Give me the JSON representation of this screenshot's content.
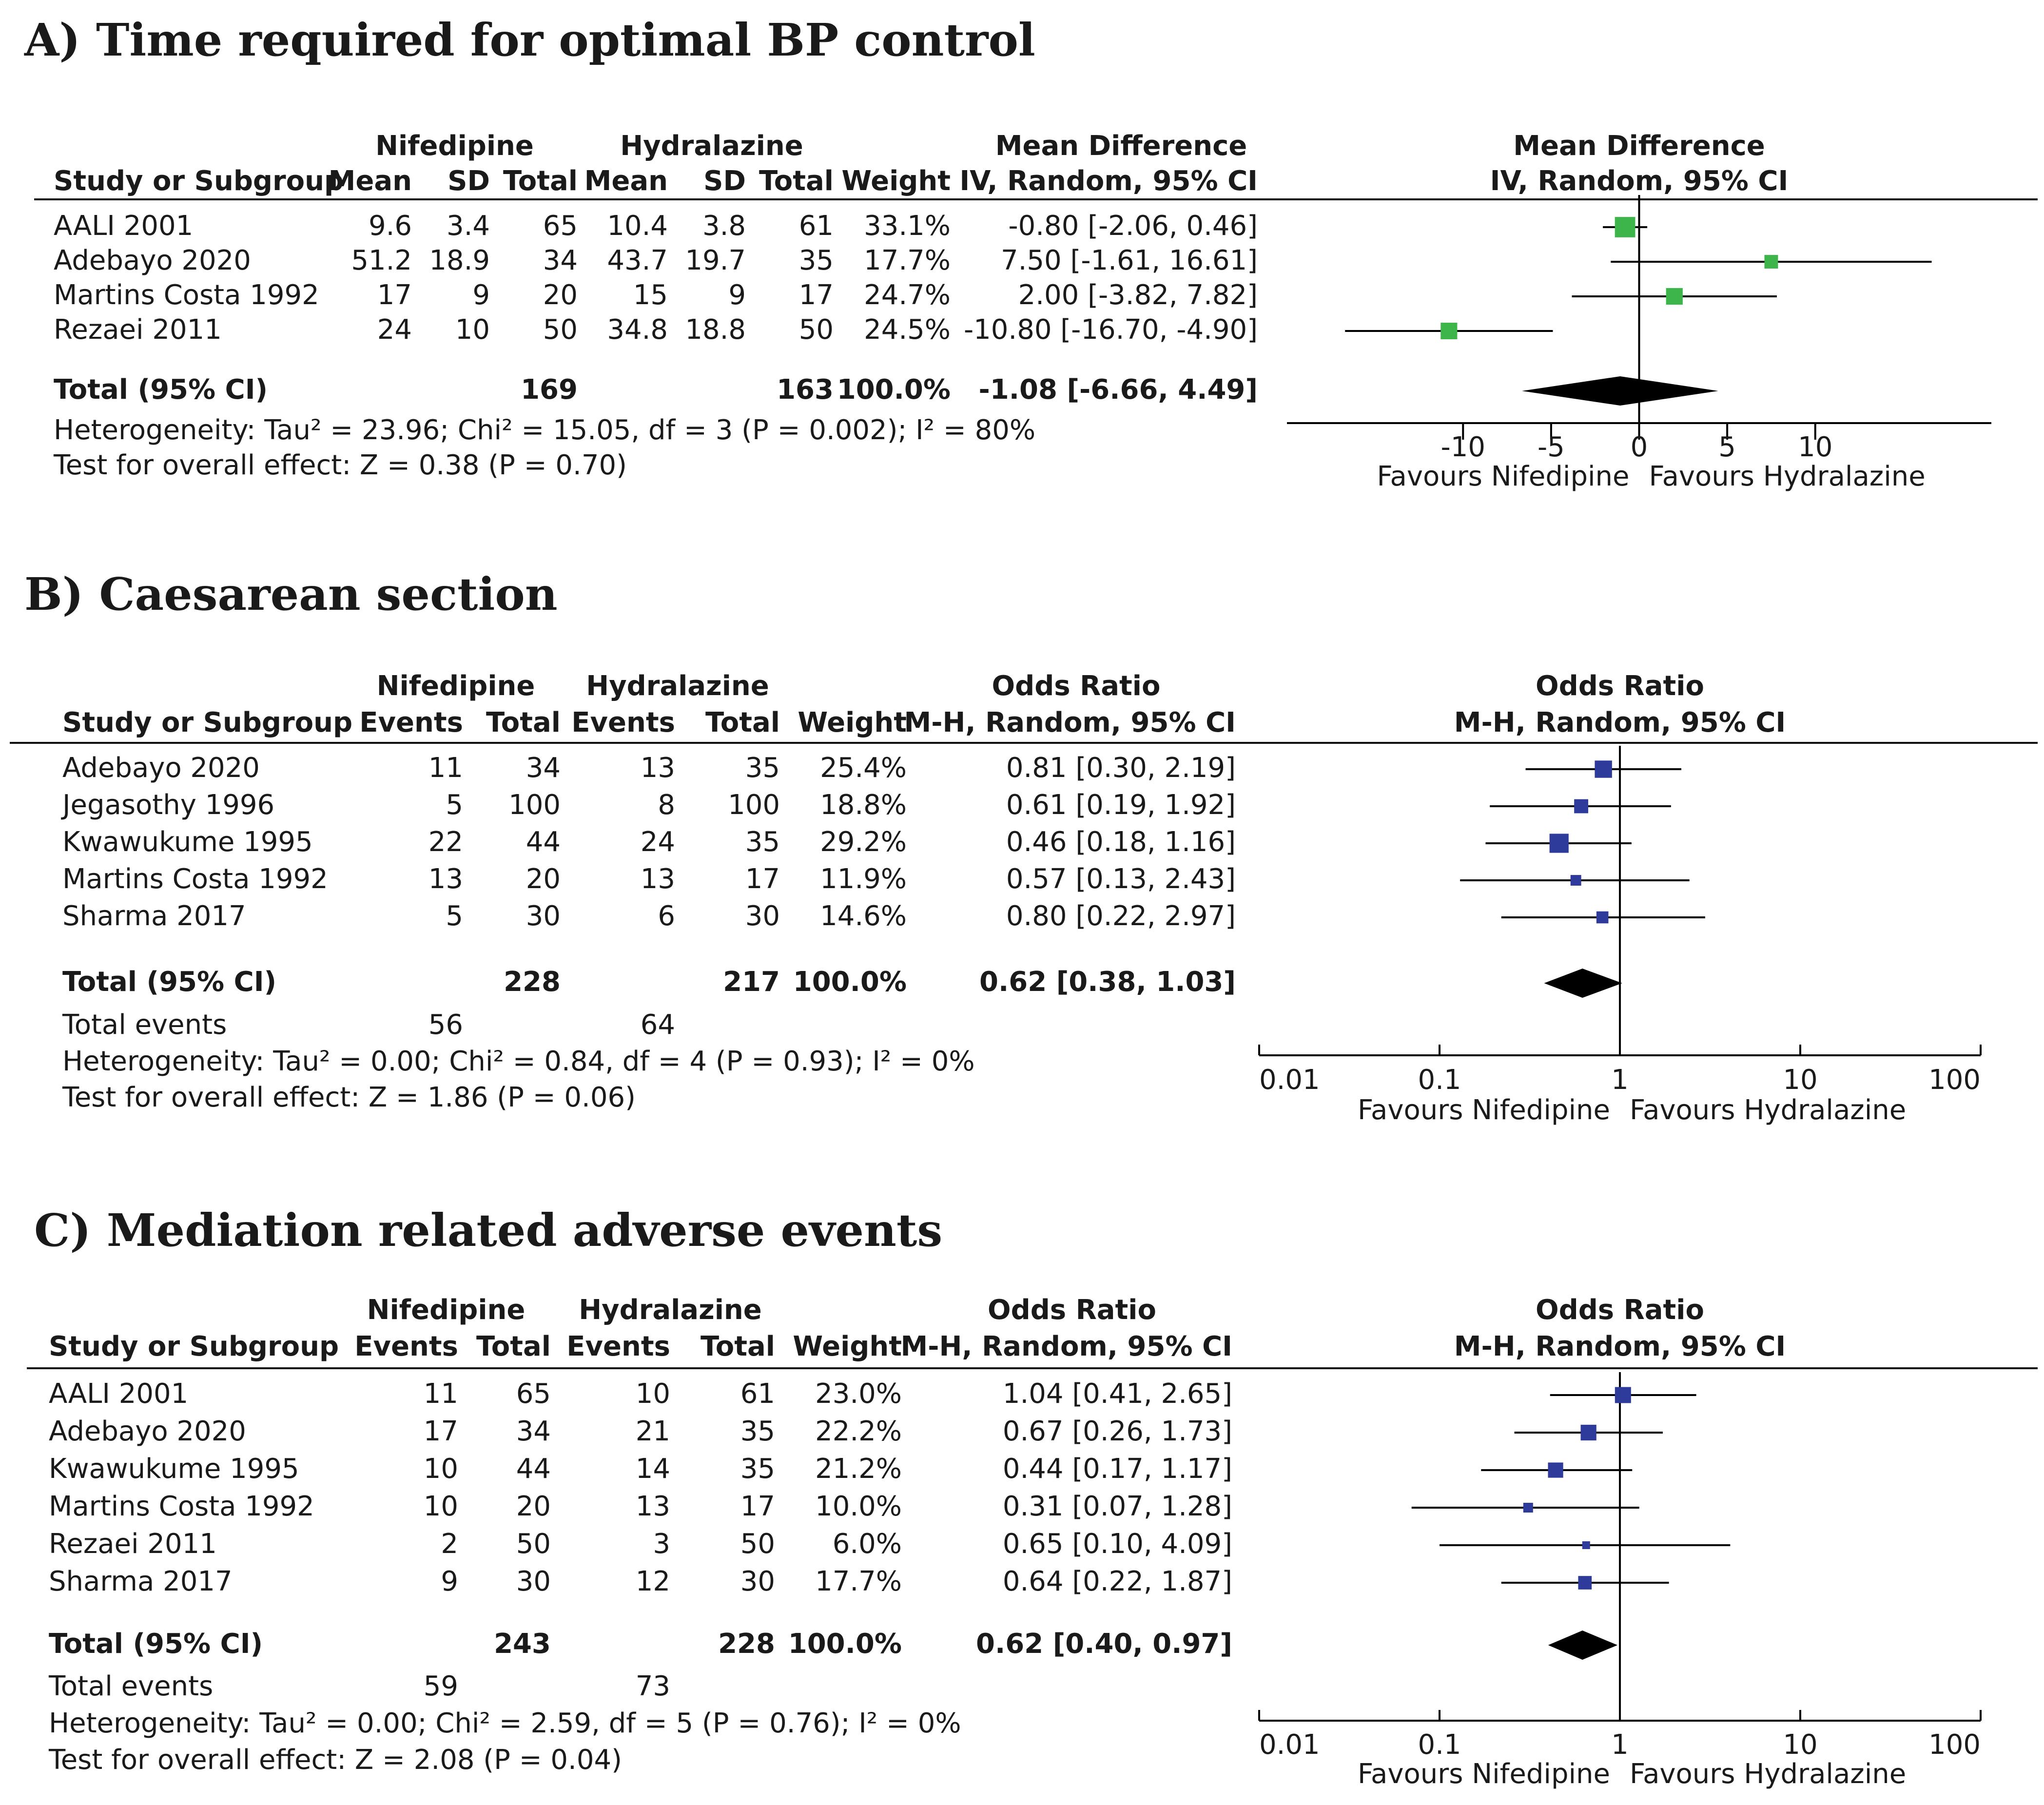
{
  "panels": [
    {
      "id": "A",
      "title": "A) Time required for optimal BP control",
      "kind": "continuous",
      "group_headers": {
        "nif": "Nifedipine",
        "hyd": "Hydralazine",
        "effect_top": "Mean Difference",
        "effect_sub": "IV, Random, 95% CI",
        "plot_top": "Mean Difference",
        "plot_sub": "IV, Random, 95% CI"
      },
      "col_headers": {
        "study": "Study or Subgroup",
        "c1": "Mean",
        "c2": "SD",
        "c3": "Total",
        "c4": "Mean",
        "c5": "SD",
        "c6": "Total",
        "weight": "Weight"
      },
      "rows": [
        {
          "study": "AALI 2001",
          "c1": "9.6",
          "c2": "3.4",
          "c3": "65",
          "c4": "10.4",
          "c5": "3.8",
          "c6": "61",
          "weight": "33.1%",
          "ci_text": "-0.80 [-2.06, 0.46]"
        },
        {
          "study": "Adebayo 2020",
          "c1": "51.2",
          "c2": "18.9",
          "c3": "34",
          "c4": "43.7",
          "c5": "19.7",
          "c6": "35",
          "weight": "17.7%",
          "ci_text": "7.50 [-1.61, 16.61]"
        },
        {
          "study": "Martins Costa 1992",
          "c1": "17",
          "c2": "9",
          "c3": "20",
          "c4": "15",
          "c5": "9",
          "c6": "17",
          "weight": "24.7%",
          "ci_text": "2.00 [-3.82, 7.82]"
        },
        {
          "study": "Rezaei 2011",
          "c1": "24",
          "c2": "10",
          "c3": "50",
          "c4": "34.8",
          "c5": "18.8",
          "c6": "50",
          "weight": "24.5%",
          "ci_text": "-10.80 [-16.70, -4.90]"
        }
      ],
      "total": {
        "label": "Total (95% CI)",
        "n1": "169",
        "n2": "163",
        "weight": "100.0%",
        "ci_text": "-1.08 [-6.66, 4.49]"
      },
      "notes": [
        "Heterogeneity: Tau² = 23.96; Chi² = 15.05, df = 3 (P = 0.002); I² = 80%",
        "Test for overall effect: Z = 0.38 (P = 0.70)"
      ],
      "axis": {
        "ticks": [
          "-10",
          "-5",
          "0",
          "5",
          "10"
        ],
        "favours_left": "Favours Nifedipine",
        "favours_right": "Favours Hydralazine"
      }
    },
    {
      "id": "B",
      "title": "B) Caesarean section",
      "kind": "binary",
      "group_headers": {
        "nif": "Nifedipine",
        "hyd": "Hydralazine",
        "effect_top": "Odds Ratio",
        "effect_sub": "M-H, Random, 95% CI",
        "plot_top": "Odds Ratio",
        "plot_sub": "M-H, Random, 95% CI"
      },
      "col_headers": {
        "study": "Study or Subgroup",
        "c1": "Events",
        "c3": "Total",
        "c4": "Events",
        "c6": "Total",
        "weight": "Weight"
      },
      "rows": [
        {
          "study": "Adebayo 2020",
          "c1": "11",
          "c3": "34",
          "c4": "13",
          "c6": "35",
          "weight": "25.4%",
          "ci_text": "0.81 [0.30, 2.19]"
        },
        {
          "study": "Jegasothy 1996",
          "c1": "5",
          "c3": "100",
          "c4": "8",
          "c6": "100",
          "weight": "18.8%",
          "ci_text": "0.61 [0.19, 1.92]"
        },
        {
          "study": "Kwawukume 1995",
          "c1": "22",
          "c3": "44",
          "c4": "24",
          "c6": "35",
          "weight": "29.2%",
          "ci_text": "0.46 [0.18, 1.16]"
        },
        {
          "study": "Martins Costa 1992",
          "c1": "13",
          "c3": "20",
          "c4": "13",
          "c6": "17",
          "weight": "11.9%",
          "ci_text": "0.57 [0.13, 2.43]"
        },
        {
          "study": "Sharma 2017",
          "c1": "5",
          "c3": "30",
          "c4": "6",
          "c6": "30",
          "weight": "14.6%",
          "ci_text": "0.80 [0.22, 2.97]"
        }
      ],
      "total": {
        "label": "Total (95% CI)",
        "n1": "228",
        "n2": "217",
        "weight": "100.0%",
        "ci_text": "0.62 [0.38, 1.03]"
      },
      "total_events": {
        "label": "Total events",
        "e1": "56",
        "e2": "64"
      },
      "notes": [
        "Heterogeneity: Tau² = 0.00; Chi² = 0.84, df = 4 (P = 0.93); I² = 0%",
        "Test for overall effect: Z = 1.86 (P = 0.06)"
      ],
      "axis": {
        "ticks": [
          "0.01",
          "0.1",
          "1",
          "10",
          "100"
        ],
        "favours_left": "Favours Nifedipine",
        "favours_right": "Favours Hydralazine"
      }
    },
    {
      "id": "C",
      "title": "C) Mediation related adverse events",
      "kind": "binary",
      "group_headers": {
        "nif": "Nifedipine",
        "hyd": "Hydralazine",
        "effect_top": "Odds Ratio",
        "effect_sub": "M-H, Random, 95% CI",
        "plot_top": "Odds Ratio",
        "plot_sub": "M-H, Random, 95% CI"
      },
      "col_headers": {
        "study": "Study or Subgroup",
        "c1": "Events",
        "c3": "Total",
        "c4": "Events",
        "c6": "Total",
        "weight": "Weight"
      },
      "rows": [
        {
          "study": "AALI 2001",
          "c1": "11",
          "c3": "65",
          "c4": "10",
          "c6": "61",
          "weight": "23.0%",
          "ci_text": "1.04 [0.41, 2.65]"
        },
        {
          "study": "Adebayo 2020",
          "c1": "17",
          "c3": "34",
          "c4": "21",
          "c6": "35",
          "weight": "22.2%",
          "ci_text": "0.67 [0.26, 1.73]"
        },
        {
          "study": "Kwawukume 1995",
          "c1": "10",
          "c3": "44",
          "c4": "14",
          "c6": "35",
          "weight": "21.2%",
          "ci_text": "0.44 [0.17, 1.17]"
        },
        {
          "study": "Martins Costa 1992",
          "c1": "10",
          "c3": "20",
          "c4": "13",
          "c6": "17",
          "weight": "10.0%",
          "ci_text": "0.31 [0.07, 1.28]"
        },
        {
          "study": "Rezaei 2011",
          "c1": "2",
          "c3": "50",
          "c4": "3",
          "c6": "50",
          "weight": "6.0%",
          "ci_text": "0.65 [0.10, 4.09]"
        },
        {
          "study": "Sharma 2017",
          "c1": "9",
          "c3": "30",
          "c4": "12",
          "c6": "30",
          "weight": "17.7%",
          "ci_text": "0.64 [0.22, 1.87]"
        }
      ],
      "total": {
        "label": "Total (95% CI)",
        "n1": "243",
        "n2": "228",
        "weight": "100.0%",
        "ci_text": "0.62 [0.40, 0.97]"
      },
      "total_events": {
        "label": "Total events",
        "e1": "59",
        "e2": "73"
      },
      "notes": [
        "Heterogeneity: Tau² = 0.00; Chi² = 2.59, df = 5 (P = 0.76); I² = 0%",
        "Test for overall effect: Z = 2.08 (P = 0.04)"
      ],
      "axis": {
        "ticks": [
          "0.01",
          "0.1",
          "1",
          "10",
          "100"
        ],
        "favours_left": "Favours Nifedipine",
        "favours_right": "Favours Hydralazine"
      }
    }
  ],
  "colors": {
    "marker_A": "#3db54a",
    "marker_BC": "#2e3b9a",
    "diamond": "#000000"
  },
  "chart_data": [
    {
      "type": "forest",
      "title": "A) Time required for optimal BP control",
      "scale": "linear",
      "xlim": [
        -20,
        20
      ],
      "null_value": 0,
      "studies": [
        {
          "name": "AALI 2001",
          "estimate": -0.8,
          "lower": -2.06,
          "upper": 0.46,
          "weight": 33.1
        },
        {
          "name": "Adebayo 2020",
          "estimate": 7.5,
          "lower": -1.61,
          "upper": 16.61,
          "weight": 17.7
        },
        {
          "name": "Martins Costa 1992",
          "estimate": 2.0,
          "lower": -3.82,
          "upper": 7.82,
          "weight": 24.7
        },
        {
          "name": "Rezaei 2011",
          "estimate": -10.8,
          "lower": -16.7,
          "upper": -4.9,
          "weight": 24.5
        }
      ],
      "pooled": {
        "estimate": -1.08,
        "lower": -6.66,
        "upper": 4.49
      }
    },
    {
      "type": "forest",
      "title": "B) Caesarean section",
      "scale": "log",
      "xlim": [
        0.01,
        100
      ],
      "null_value": 1,
      "studies": [
        {
          "name": "Adebayo 2020",
          "estimate": 0.81,
          "lower": 0.3,
          "upper": 2.19,
          "weight": 25.4
        },
        {
          "name": "Jegasothy 1996",
          "estimate": 0.61,
          "lower": 0.19,
          "upper": 1.92,
          "weight": 18.8
        },
        {
          "name": "Kwawukume 1995",
          "estimate": 0.46,
          "lower": 0.18,
          "upper": 1.16,
          "weight": 29.2
        },
        {
          "name": "Martins Costa 1992",
          "estimate": 0.57,
          "lower": 0.13,
          "upper": 2.43,
          "weight": 11.9
        },
        {
          "name": "Sharma 2017",
          "estimate": 0.8,
          "lower": 0.22,
          "upper": 2.97,
          "weight": 14.6
        }
      ],
      "pooled": {
        "estimate": 0.62,
        "lower": 0.38,
        "upper": 1.03
      }
    },
    {
      "type": "forest",
      "title": "C) Mediation related adverse events",
      "scale": "log",
      "xlim": [
        0.01,
        100
      ],
      "null_value": 1,
      "studies": [
        {
          "name": "AALI 2001",
          "estimate": 1.04,
          "lower": 0.41,
          "upper": 2.65,
          "weight": 23.0
        },
        {
          "name": "Adebayo 2020",
          "estimate": 0.67,
          "lower": 0.26,
          "upper": 1.73,
          "weight": 22.2
        },
        {
          "name": "Kwawukume 1995",
          "estimate": 0.44,
          "lower": 0.17,
          "upper": 1.17,
          "weight": 21.2
        },
        {
          "name": "Martins Costa 1992",
          "estimate": 0.31,
          "lower": 0.07,
          "upper": 1.28,
          "weight": 10.0
        },
        {
          "name": "Rezaei 2011",
          "estimate": 0.65,
          "lower": 0.1,
          "upper": 4.09,
          "weight": 6.0
        },
        {
          "name": "Sharma 2017",
          "estimate": 0.64,
          "lower": 0.22,
          "upper": 1.87,
          "weight": 17.7
        }
      ],
      "pooled": {
        "estimate": 0.62,
        "lower": 0.4,
        "upper": 0.97
      }
    }
  ]
}
